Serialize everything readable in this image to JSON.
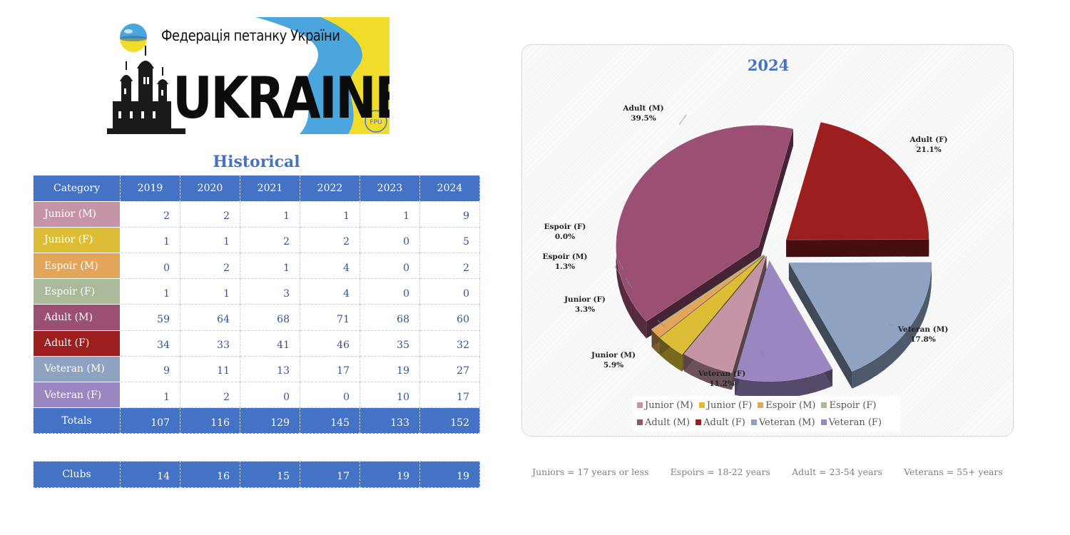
{
  "banner": {
    "caption": "Федерація петанку України",
    "word": "UKRAINE",
    "badge": "FPU",
    "colors": {
      "blue": "#4aa6dc",
      "yellow": "#f2dc2a"
    }
  },
  "table": {
    "title": "Historical",
    "header_label": "Category",
    "years": [
      "2019",
      "2020",
      "2021",
      "2022",
      "2023",
      "2024"
    ],
    "rows": [
      {
        "label": "Junior (M)",
        "color": "#c594a7",
        "values": [
          "2",
          "2",
          "1",
          "1",
          "1",
          "9"
        ]
      },
      {
        "label": "Junior (F)",
        "color": "#dcbd35",
        "values": [
          "1",
          "1",
          "2",
          "2",
          "0",
          "5"
        ]
      },
      {
        "label": "Espoir (M)",
        "color": "#e3a55a",
        "values": [
          "0",
          "2",
          "1",
          "4",
          "0",
          "2"
        ]
      },
      {
        "label": "Espoir (F)",
        "color": "#a9b99a",
        "values": [
          "1",
          "1",
          "3",
          "4",
          "0",
          "0"
        ]
      },
      {
        "label": "Adult (M)",
        "color": "#9b4f72",
        "values": [
          "59",
          "64",
          "68",
          "71",
          "68",
          "60"
        ]
      },
      {
        "label": "Adult (F)",
        "color": "#9c1e1e",
        "values": [
          "34",
          "33",
          "41",
          "46",
          "35",
          "32"
        ]
      },
      {
        "label": "Veteran (M)",
        "color": "#8ea2c2",
        "values": [
          "9",
          "11",
          "13",
          "17",
          "19",
          "27"
        ]
      },
      {
        "label": "Veteran (F)",
        "color": "#9a86c0",
        "values": [
          "1",
          "2",
          "0",
          "0",
          "10",
          "17"
        ]
      }
    ],
    "totals": {
      "label": "Totals",
      "values": [
        "107",
        "116",
        "129",
        "145",
        "133",
        "152"
      ]
    },
    "clubs": {
      "label": "Clubs",
      "values": [
        "14",
        "16",
        "15",
        "17",
        "19",
        "19"
      ]
    },
    "header_color": "#4472c4"
  },
  "chart_data": {
    "type": "pie",
    "title": "2024",
    "categories": [
      "Junior (M)",
      "Junior (F)",
      "Espoir (M)",
      "Espoir (F)",
      "Adult (M)",
      "Adult (F)",
      "Veteran (M)",
      "Veteran (F)"
    ],
    "values": [
      9,
      5,
      2,
      0,
      60,
      32,
      27,
      17
    ],
    "percent_labels": [
      "5.9%",
      "3.3%",
      "1.3%",
      "0.0%",
      "39.5%",
      "21.1%",
      "17.8%",
      "11.2%"
    ],
    "colors": [
      "#c594a7",
      "#dcbd35",
      "#e3a55a",
      "#a9b99a",
      "#9b4f72",
      "#9c1e1e",
      "#8ea2c2",
      "#9a86c0"
    ],
    "exploded": true,
    "three_d": true,
    "legend_position": "bottom"
  },
  "footnotes": [
    "Juniors = 17 years or less",
    "Espoirs = 18-22 years",
    "Adult = 23-54 years",
    "Veterans = 55+ years"
  ]
}
